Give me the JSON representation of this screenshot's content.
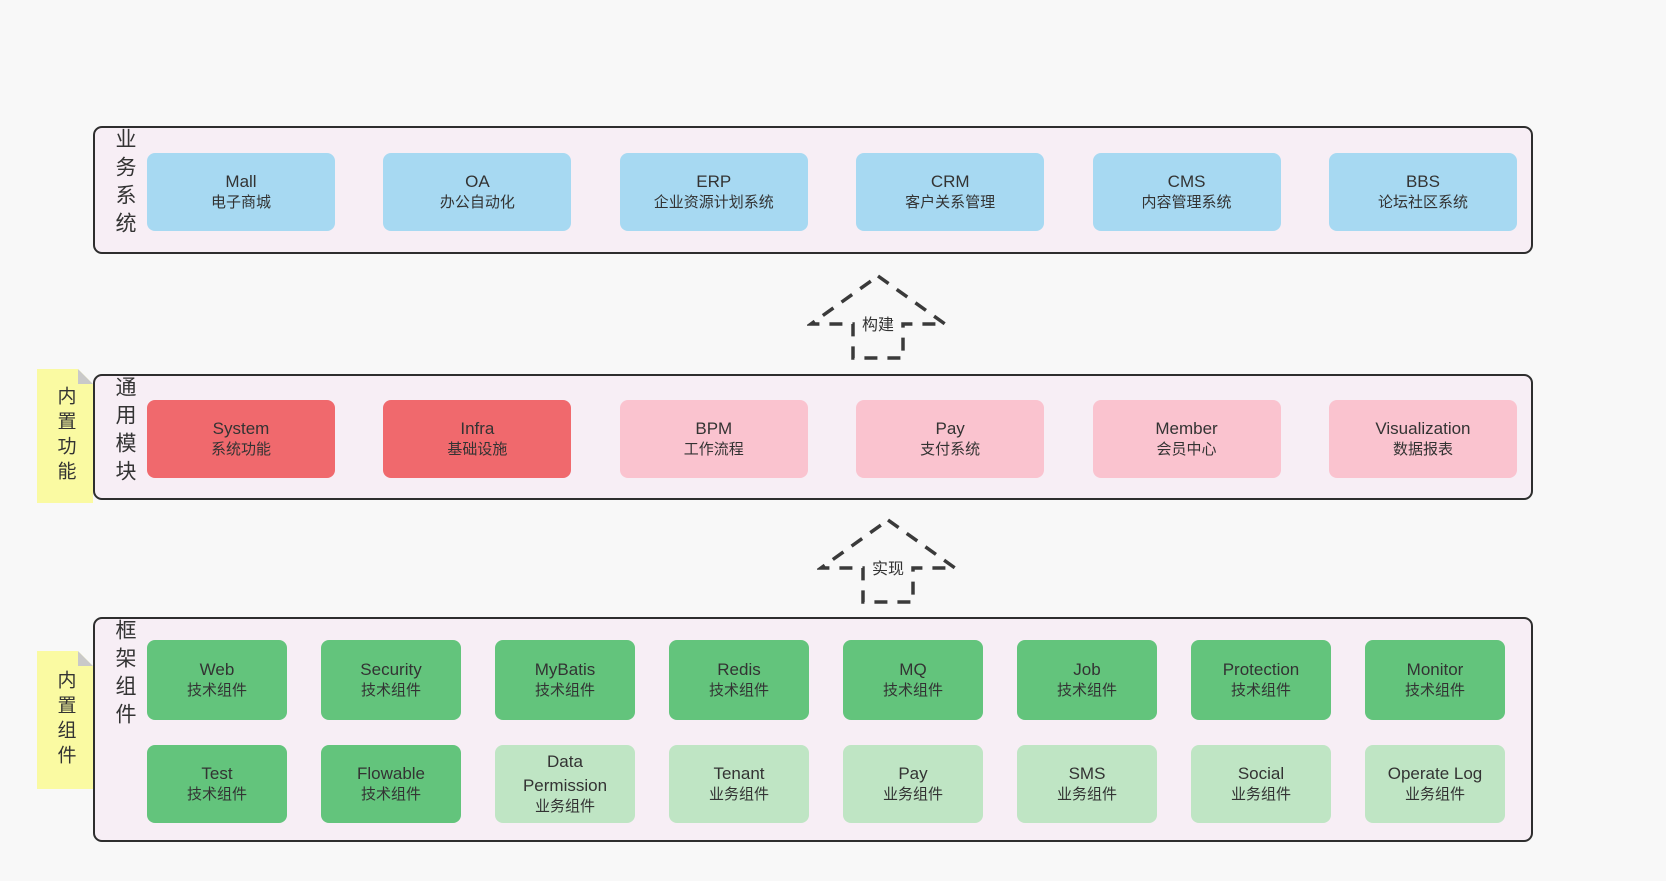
{
  "colors": {
    "page-bg": "#f8f8f8",
    "band-bg": "#f7eef5",
    "band-border": "#2e2e2e",
    "blue": "#a7d9f2",
    "red": "#f0696d",
    "pink": "#fac3cf",
    "green": "#63c47c",
    "light-green": "#bfe5c4",
    "note-bg": "#fafaa2",
    "note-fold": "#c9c9c9",
    "text": "#333333"
  },
  "sections": [
    {
      "label": "业务系统",
      "rows": [
        [
          {
            "name": "Mall",
            "desc": "电子商城",
            "color": "blue"
          },
          {
            "name": "OA",
            "desc": "办公自动化",
            "color": "blue"
          },
          {
            "name": "ERP",
            "desc": "企业资源计划系统",
            "color": "blue"
          },
          {
            "name": "CRM",
            "desc": "客户关系管理",
            "color": "blue"
          },
          {
            "name": "CMS",
            "desc": "内容管理系统",
            "color": "blue"
          },
          {
            "name": "BBS",
            "desc": "论坛社区系统",
            "color": "blue"
          }
        ]
      ]
    },
    {
      "label": "通用模块",
      "note": "内置功能",
      "rows": [
        [
          {
            "name": "System",
            "desc": "系统功能",
            "color": "red"
          },
          {
            "name": "Infra",
            "desc": "基础设施",
            "color": "red"
          },
          {
            "name": "BPM",
            "desc": "工作流程",
            "color": "pink"
          },
          {
            "name": "Pay",
            "desc": "支付系统",
            "color": "pink"
          },
          {
            "name": "Member",
            "desc": "会员中心",
            "color": "pink"
          },
          {
            "name": "Visualization",
            "desc": "数据报表",
            "color": "pink"
          }
        ]
      ]
    },
    {
      "label": "框架组件",
      "note": "内置组件",
      "rows": [
        [
          {
            "name": "Web",
            "desc": "技术组件",
            "color": "green"
          },
          {
            "name": "Security",
            "desc": "技术组件",
            "color": "green"
          },
          {
            "name": "MyBatis",
            "desc": "技术组件",
            "color": "green"
          },
          {
            "name": "Redis",
            "desc": "技术组件",
            "color": "green"
          },
          {
            "name": "MQ",
            "desc": "技术组件",
            "color": "green"
          },
          {
            "name": "Job",
            "desc": "技术组件",
            "color": "green"
          },
          {
            "name": "Protection",
            "desc": "技术组件",
            "color": "green"
          },
          {
            "name": "Monitor",
            "desc": "技术组件",
            "color": "green"
          }
        ],
        [
          {
            "name": "Test",
            "desc": "技术组件",
            "color": "green"
          },
          {
            "name": "Flowable",
            "desc": "技术组件",
            "color": "green"
          },
          {
            "name": "Data Permission",
            "desc": "业务组件",
            "color": "light-green"
          },
          {
            "name": "Tenant",
            "desc": "业务组件",
            "color": "light-green"
          },
          {
            "name": "Pay",
            "desc": "业务组件",
            "color": "light-green"
          },
          {
            "name": "SMS",
            "desc": "业务组件",
            "color": "light-green"
          },
          {
            "name": "Social",
            "desc": "业务组件",
            "color": "light-green"
          },
          {
            "name": "Operate Log",
            "desc": "业务组件",
            "color": "light-green"
          }
        ]
      ]
    }
  ],
  "arrows": [
    {
      "label": "构建"
    },
    {
      "label": "实现"
    }
  ]
}
